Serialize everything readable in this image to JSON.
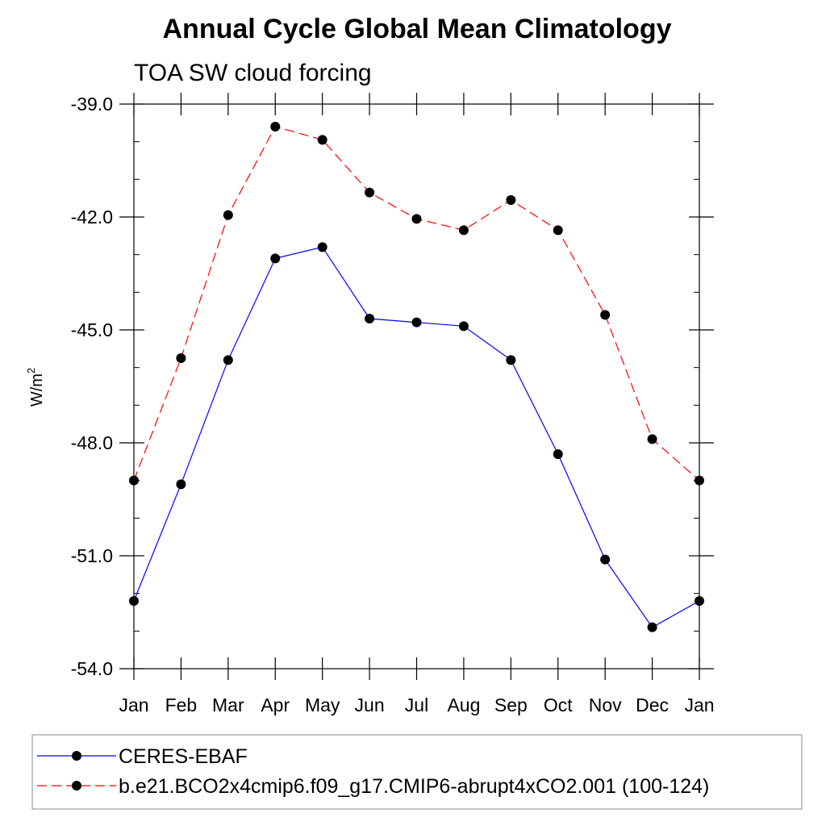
{
  "chart_data": {
    "type": "line",
    "title": "Annual Cycle Global Mean Climatology",
    "subtitle": "TOA SW cloud forcing",
    "ylabel_base": "W/m",
    "ylabel_sup": "2",
    "xlabel": "",
    "categories": [
      "Jan",
      "Feb",
      "Mar",
      "Apr",
      "May",
      "Jun",
      "Jul",
      "Aug",
      "Sep",
      "Oct",
      "Nov",
      "Dec",
      "Jan"
    ],
    "ylim": [
      -54.0,
      -39.0
    ],
    "yticks": [
      -54.0,
      -51.0,
      -48.0,
      -45.0,
      -42.0,
      -39.0
    ],
    "ytick_labels": [
      "-54.0",
      "-51.0",
      "-48.0",
      "-45.0",
      "-42.0",
      "-39.0"
    ],
    "grid": false,
    "legend_position": "bottom",
    "series": [
      {
        "name": "CERES-EBAF",
        "color": "#0000ff",
        "dash": "solid",
        "values": [
          -52.2,
          -49.1,
          -45.8,
          -43.1,
          -42.8,
          -44.7,
          -44.8,
          -44.9,
          -45.8,
          -48.3,
          -51.1,
          -52.9,
          -52.2
        ]
      },
      {
        "name": "b.e21.BCO2x4cmip6.f09_g17.CMIP6-abrupt4xCO2.001 (100-124)",
        "color": "#ff0000",
        "dash": "dashed",
        "values": [
          -49.0,
          -45.75,
          -41.95,
          -39.6,
          -39.95,
          -41.35,
          -42.05,
          -42.35,
          -41.55,
          -42.35,
          -44.6,
          -47.9,
          -49.0
        ]
      }
    ]
  }
}
